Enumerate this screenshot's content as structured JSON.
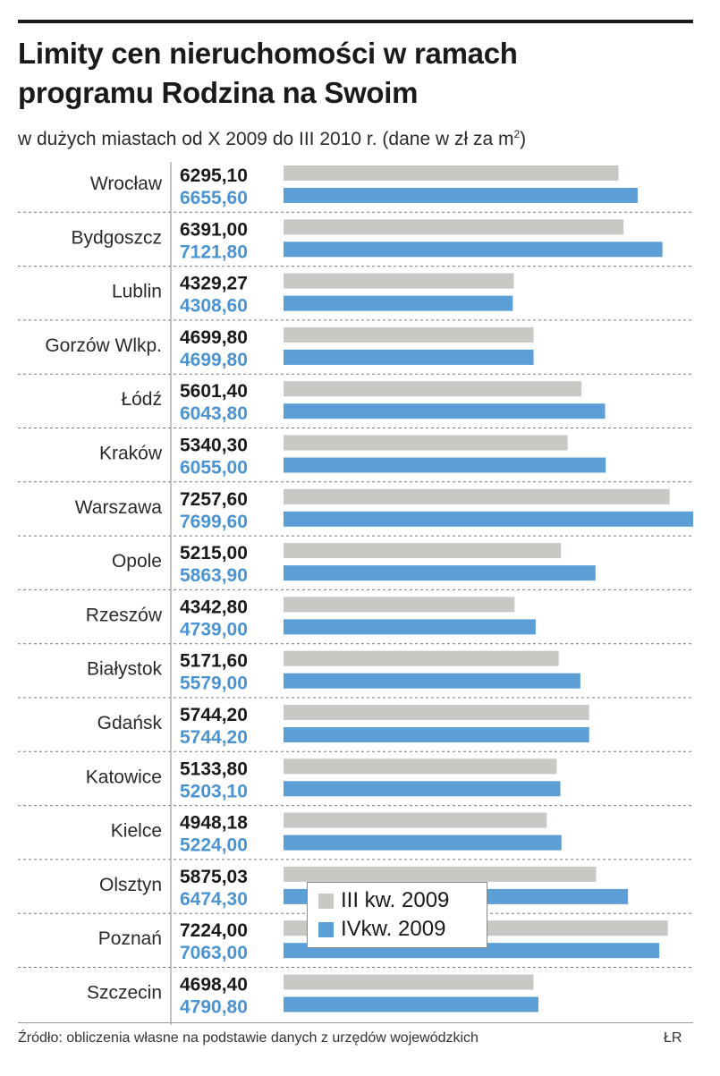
{
  "header": {
    "title_line1": "Limity cen nieruchomości w ramach",
    "title_line2": "programu Rodzina na Swoim",
    "subtitle": "w dużych miastach od X 2009 do III 2010 r. (dane w zł za m",
    "subtitle_sup": "2",
    "subtitle_end": ")"
  },
  "footer": {
    "source": "Źródło: obliczenia własne na podstawie danych z urzędów wojewódzkich",
    "credit": "ŁR"
  },
  "colors": {
    "series1": "#c8c8c4",
    "series2": "#5b9fd6",
    "label2": "#4b93d1"
  },
  "chart_data": {
    "type": "bar",
    "orientation": "horizontal",
    "categories": [
      "Wrocław",
      "Bydgoszcz",
      "Lublin",
      "Gorzów Wlkp.",
      "Łódź",
      "Kraków",
      "Warszawa",
      "Opole",
      "Rzeszów",
      "Białystok",
      "Gdańsk",
      "Katowice",
      "Kielce",
      "Olsztyn",
      "Poznań",
      "Szczecin"
    ],
    "series": [
      {
        "name": "III kw. 2009",
        "values": [
          6295.1,
          6391.0,
          4329.27,
          4699.8,
          5601.4,
          5340.3,
          7257.6,
          5215.0,
          4342.8,
          5171.6,
          5744.2,
          5133.8,
          4948.18,
          5875.03,
          7224.0,
          4698.4
        ],
        "labels": [
          "6295,10",
          "6391,00",
          "4329,27",
          "4699,80",
          "5601,40",
          "5340,30",
          "7257,60",
          "5215,00",
          "4342,80",
          "5171,60",
          "5744,20",
          "5133,80",
          "4948,18",
          "5875,03",
          "7224,00",
          "4698,40"
        ]
      },
      {
        "name": "IVkw. 2009",
        "values": [
          6655.6,
          7121.8,
          4308.6,
          4699.8,
          6043.8,
          6055.0,
          7699.6,
          5863.9,
          4739.0,
          5579.0,
          5744.2,
          5203.1,
          5224.0,
          6474.3,
          7063.0,
          4790.8
        ],
        "labels": [
          "6655,60",
          "7121,80",
          "4308,60",
          "4699,80",
          "6043,80",
          "6055,00",
          "7699,60",
          "5863,90",
          "4739,00",
          "5579,00",
          "5744,20",
          "5203,10",
          "5224,00",
          "6474,30",
          "7063,00",
          "4790,80"
        ]
      }
    ],
    "legend_position": "bottom-center",
    "grid": false
  }
}
